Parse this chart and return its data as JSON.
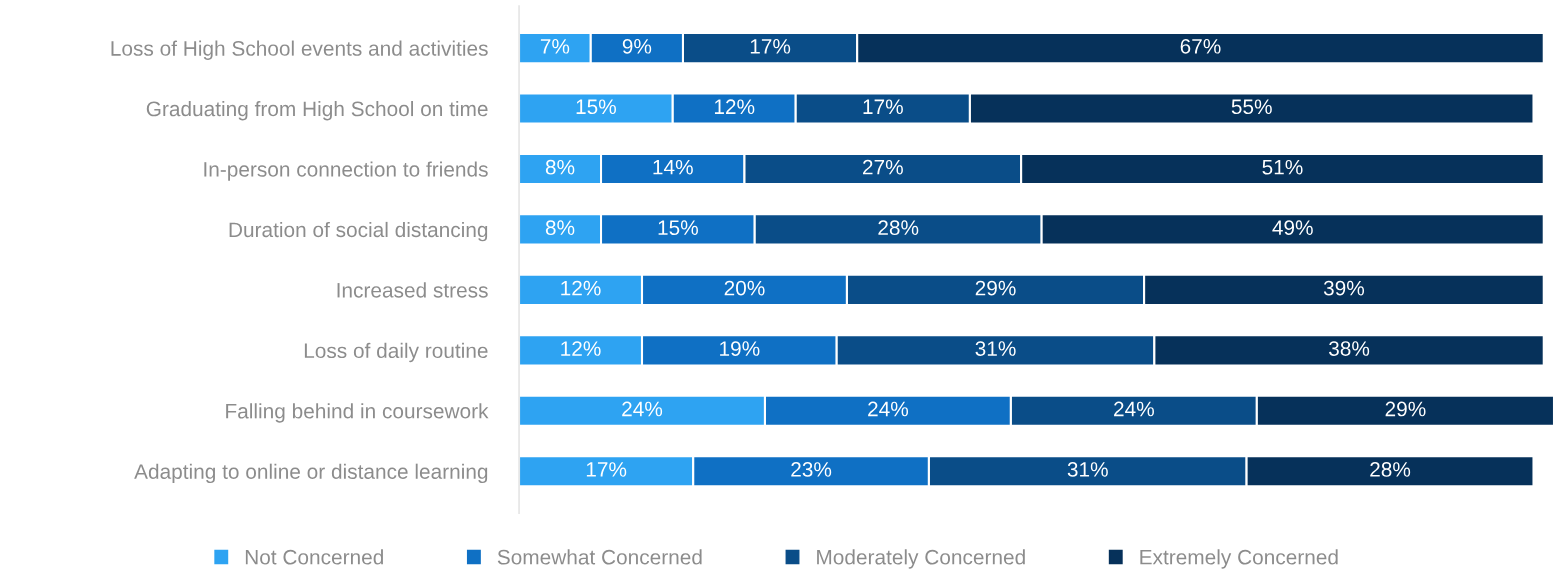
{
  "chart_data": {
    "type": "bar",
    "orientation": "horizontal",
    "stacked": true,
    "legend": "bottom",
    "grid": false,
    "categories": [
      "Loss of High School events and activities",
      "Graduating from High School on time",
      "In-person connection to friends",
      "Duration of social distancing",
      "Increased stress",
      "Loss of daily routine",
      "Falling behind in coursework",
      "Adapting to online or distance learning"
    ],
    "series": [
      {
        "name": "Not Concerned",
        "color": "#2ea3f2",
        "values": [
          7,
          15,
          8,
          8,
          12,
          12,
          24,
          17
        ],
        "value_labels": [
          "7%",
          "15%",
          "8%",
          "8%",
          "12%",
          "12%",
          "24%",
          "17%"
        ]
      },
      {
        "name": "Somewhat Concerned",
        "color": "#0f70c4",
        "values": [
          9,
          12,
          14,
          15,
          20,
          19,
          24,
          23
        ],
        "value_labels": [
          "9%",
          "12%",
          "14%",
          "15%",
          "20%",
          "19%",
          "24%",
          "23%"
        ]
      },
      {
        "name": "Moderately Concerned",
        "color": "#0a4d88",
        "values": [
          17,
          17,
          27,
          28,
          29,
          31,
          24,
          31
        ],
        "value_labels": [
          "17%",
          "17%",
          "27%",
          "28%",
          "29%",
          "31%",
          "24%",
          "31%"
        ]
      },
      {
        "name": "Extremely Concerned",
        "color": "#06315a",
        "values": [
          67,
          55,
          51,
          49,
          39,
          38,
          29,
          28
        ],
        "value_labels": [
          "67%",
          "55%",
          "51%",
          "49%",
          "39%",
          "38%",
          "29%",
          "28%"
        ]
      }
    ]
  }
}
